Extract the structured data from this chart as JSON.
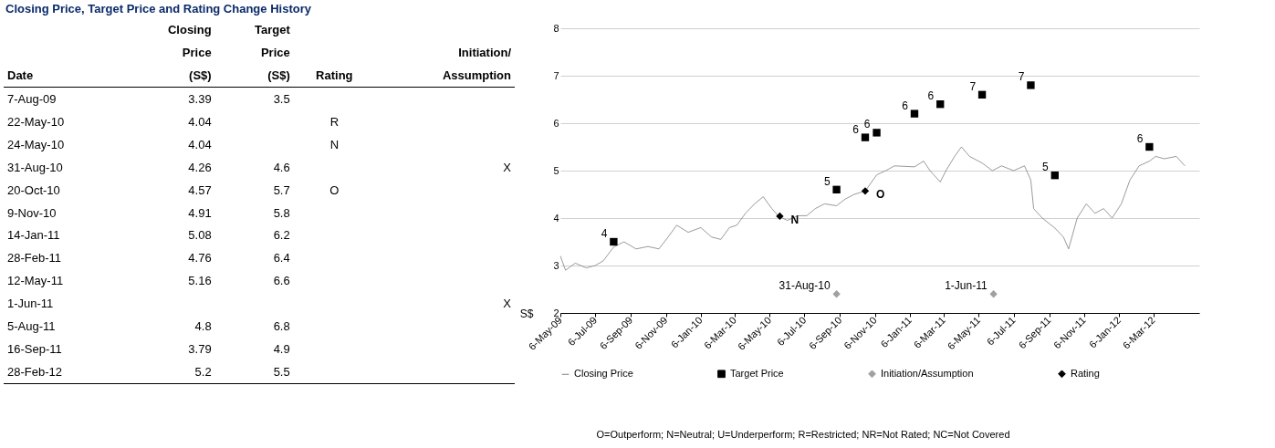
{
  "chart_data": {
    "type": "line",
    "title": "Closing Price, Target Price and Rating Change History",
    "ylabel": "S$",
    "ylim": [
      2,
      8
    ],
    "yticks": [
      2,
      3,
      4,
      5,
      6,
      7,
      8
    ],
    "xlim": [
      "2009-05-06",
      "2012-05-25"
    ],
    "xticks": [
      {
        "value": "2009-05-06",
        "label": "6-May-09"
      },
      {
        "value": "2009-07-06",
        "label": "6-Jul-09"
      },
      {
        "value": "2009-09-06",
        "label": "6-Sep-09"
      },
      {
        "value": "2009-11-06",
        "label": "6-Nov-09"
      },
      {
        "value": "2010-01-06",
        "label": "6-Jan-10"
      },
      {
        "value": "2010-03-06",
        "label": "6-Mar-10"
      },
      {
        "value": "2010-05-06",
        "label": "6-May-10"
      },
      {
        "value": "2010-07-06",
        "label": "6-Jul-10"
      },
      {
        "value": "2010-09-06",
        "label": "6-Sep-10"
      },
      {
        "value": "2010-11-06",
        "label": "6-Nov-10"
      },
      {
        "value": "2011-01-06",
        "label": "6-Jan-11"
      },
      {
        "value": "2011-03-06",
        "label": "6-Mar-11"
      },
      {
        "value": "2011-05-06",
        "label": "6-May-11"
      },
      {
        "value": "2011-07-06",
        "label": "6-Jul-11"
      },
      {
        "value": "2011-09-06",
        "label": "6-Sep-11"
      },
      {
        "value": "2011-11-06",
        "label": "6-Nov-11"
      },
      {
        "value": "2012-01-06",
        "label": "6-Jan-12"
      },
      {
        "value": "2012-03-06",
        "label": "6-Mar-12"
      }
    ],
    "grid": "y",
    "legend": "bottom",
    "series": [
      {
        "name": "Closing Price",
        "type": "line",
        "color": "#808080",
        "x": [
          "2009-05-06",
          "2009-05-15",
          "2009-06-01",
          "2009-06-20",
          "2009-07-06",
          "2009-07-20",
          "2009-08-07",
          "2009-08-25",
          "2009-09-15",
          "2009-10-06",
          "2009-10-25",
          "2009-11-10",
          "2009-11-25",
          "2009-12-15",
          "2010-01-06",
          "2010-01-25",
          "2010-02-10",
          "2010-02-25",
          "2010-03-10",
          "2010-03-25",
          "2010-04-10",
          "2010-04-25",
          "2010-05-10",
          "2010-05-22",
          "2010-06-06",
          "2010-06-25",
          "2010-07-10",
          "2010-07-25",
          "2010-08-10",
          "2010-08-31",
          "2010-09-15",
          "2010-10-01",
          "2010-10-20",
          "2010-11-09",
          "2010-11-25",
          "2010-12-10",
          "2011-01-14",
          "2011-01-30",
          "2011-02-10",
          "2011-02-28",
          "2011-03-10",
          "2011-03-25",
          "2011-04-06",
          "2011-04-20",
          "2011-05-12",
          "2011-05-30",
          "2011-06-15",
          "2011-07-06",
          "2011-07-25",
          "2011-08-05",
          "2011-08-10",
          "2011-08-25",
          "2011-09-16",
          "2011-10-01",
          "2011-10-10",
          "2011-10-25",
          "2011-11-10",
          "2011-11-25",
          "2011-12-10",
          "2011-12-25",
          "2012-01-10",
          "2012-01-25",
          "2012-02-10",
          "2012-02-28",
          "2012-03-10",
          "2012-03-25",
          "2012-04-15",
          "2012-04-30"
        ],
        "values": [
          3.2,
          2.9,
          3.05,
          2.95,
          3.0,
          3.1,
          3.39,
          3.5,
          3.35,
          3.4,
          3.35,
          3.6,
          3.85,
          3.7,
          3.8,
          3.6,
          3.55,
          3.8,
          3.85,
          4.1,
          4.3,
          4.45,
          4.2,
          4.04,
          3.95,
          4.05,
          4.05,
          4.2,
          4.3,
          4.26,
          4.4,
          4.5,
          4.57,
          4.91,
          5.0,
          5.1,
          5.08,
          5.2,
          5.0,
          4.76,
          5.0,
          5.3,
          5.5,
          5.3,
          5.16,
          5.0,
          5.1,
          5.0,
          5.1,
          4.8,
          4.2,
          4.0,
          3.79,
          3.6,
          3.35,
          4.0,
          4.3,
          4.1,
          4.2,
          4.0,
          4.3,
          4.8,
          5.1,
          5.2,
          5.3,
          5.25,
          5.3,
          5.1
        ]
      },
      {
        "name": "Target Price",
        "type": "scatter",
        "marker": "square",
        "color": "#000000",
        "x": [
          "2009-08-07",
          "2010-08-31",
          "2010-10-20",
          "2010-11-09",
          "2011-01-14",
          "2011-02-28",
          "2011-05-12",
          "2011-08-05",
          "2011-09-16",
          "2012-02-28"
        ],
        "values": [
          3.5,
          4.6,
          5.7,
          5.8,
          6.2,
          6.4,
          6.6,
          6.8,
          4.9,
          5.5
        ],
        "value_labels": [
          "4",
          "5",
          "6",
          "6",
          "6",
          "6",
          "7",
          "7",
          "5",
          "6"
        ]
      },
      {
        "name": "Initiation/Assumption",
        "type": "scatter",
        "marker": "diamond",
        "color": "#a0a0a0",
        "x": [
          "2010-08-31",
          "2011-06-01"
        ],
        "values": [
          2.4,
          2.4
        ],
        "value_labels": [
          "31-Aug-10",
          "1-Jun-11"
        ]
      },
      {
        "name": "Rating",
        "type": "scatter",
        "marker": "diamond",
        "color": "#000000",
        "x": [
          "2010-05-24",
          "2010-10-20"
        ],
        "values": [
          4.04,
          4.57
        ],
        "value_labels": [
          "N",
          "O"
        ]
      }
    ],
    "annotations": [
      "\tClosing\tTarget\t\t",
      "\tPrice\tPrice\t\tInitiation/",
      "Date\t(S$)\t(S$)\tRating\tAssumption",
      "7-Aug-09\t3.39\t3.5\t\t",
      "22-May-10\t4.04\t\tR\t",
      "24-May-10\t4.04\t\tN\t",
      "31-Aug-10\t4.26\t4.6\t\tX",
      "20-Oct-10\t4.57\t5.7\tO\t",
      "9-Nov-10\t4.91\t5.8\t\t",
      "14-Jan-11\t5.08\t6.2\t\t",
      "28-Feb-11\t4.76\t6.4\t\t",
      "12-May-11\t5.16\t6.6\t\t",
      "1-Jun-11\t\t\t\tX",
      "5-Aug-11\t4.8\t6.8\t\t",
      "16-Sep-11\t3.79\t4.9\t\t",
      "28-Feb-12\t5.2\t5.5\t\t",
      "O=Outperform; N=Neutral; U=Underperform; R=Restricted; NR=Not Rated; NC=Not Covered"
    ]
  }
}
